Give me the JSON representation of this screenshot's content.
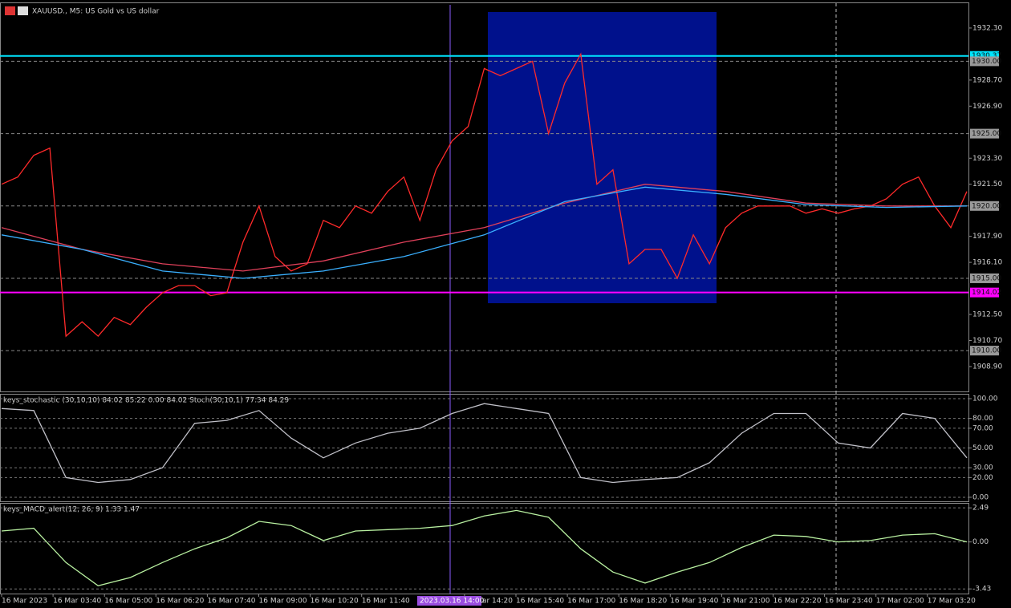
{
  "header": {
    "title": "XAUUSD., M5:  US Gold vs US dollar"
  },
  "chart_data": [
    {
      "type": "line",
      "ylim": [
        1907.18,
        1934.07
      ],
      "yticks": [
        {
          "value": 1932.3,
          "label": "1932.30"
        },
        {
          "value": 1928.7,
          "label": "1928.70"
        },
        {
          "value": 1926.9,
          "label": "1926.90"
        },
        {
          "value": 1923.3,
          "label": "1923.30"
        },
        {
          "value": 1921.5,
          "label": "1921.50"
        },
        {
          "value": 1917.9,
          "label": "1917.90"
        },
        {
          "value": 1916.1,
          "label": "1916.10"
        },
        {
          "value": 1912.5,
          "label": "1912.50"
        },
        {
          "value": 1910.7,
          "label": "1910.70"
        },
        {
          "value": 1908.9,
          "label": "1908.90"
        }
      ],
      "levels": [
        {
          "value": 1930.37,
          "label": "1930.37",
          "color": "#00e5ff"
        },
        {
          "value": 1930,
          "label": "1930.00",
          "color": "#9a9a9a"
        },
        {
          "value": 1925,
          "label": "1925.00",
          "color": "#9a9a9a"
        },
        {
          "value": 1920,
          "label": "1920.00",
          "color": "#9a9a9a"
        },
        {
          "value": 1915,
          "label": "1915.00",
          "color": "#9a9a9a"
        },
        {
          "value": 1914.02,
          "label": "1914.02",
          "color": "#ff00ff"
        },
        {
          "value": 1910,
          "label": "1910.00",
          "color": "#9a9a9a"
        }
      ],
      "series": [
        {
          "color": "#ff2a2a",
          "values": [
            1921.5,
            1922,
            1923.5,
            1924,
            1911,
            1912,
            1911,
            1912.3,
            1911.8,
            1913,
            1914,
            1914.5,
            1914.5,
            1913.8,
            1914,
            1917.5,
            1920,
            1916.5,
            1915.5,
            1916,
            1919,
            1918.5,
            1920,
            1919.5,
            1921,
            1922,
            1919,
            1922.5,
            1924.5,
            1925.5,
            1929.5,
            1929,
            1929.5,
            1930,
            1925,
            1928.5,
            1930.5,
            1921.5,
            1922.5,
            1916,
            1917,
            1917,
            1915,
            1918,
            1916,
            1918.5,
            1919.5,
            1920,
            1920,
            1920,
            1919.5,
            1919.8,
            1919.5,
            1919.8,
            1920,
            1920.5,
            1921.5,
            1922,
            1920,
            1918.5,
            1921
          ]
        },
        {
          "color": "#e0405a",
          "values": [
            1918.5,
            1917,
            1916,
            1915.5,
            1916.2,
            1917.5,
            1918.5,
            1920.2,
            1921.5,
            1921,
            1920.2,
            1920,
            1920
          ]
        },
        {
          "color": "#3ab0ff",
          "values": [
            1918,
            1917,
            1915.5,
            1915,
            1915.5,
            1916.5,
            1918,
            1920.3,
            1921.3,
            1920.8,
            1920.1,
            1919.9,
            1920
          ]
        }
      ]
    },
    {
      "type": "line",
      "title": "keys_stochastic (30,10,10) 84.02 85.22 0.00 84.02 Stoch(30,10,1) 77.34 84.29",
      "ylim": [
        -4.1,
        104.9
      ],
      "grid": true,
      "yticks": [
        {
          "value": 100,
          "label": "100.00"
        },
        {
          "value": 80,
          "label": "80.00"
        },
        {
          "value": 70,
          "label": "70.00"
        },
        {
          "value": 50,
          "label": "50.00"
        },
        {
          "value": 30,
          "label": "30.00"
        },
        {
          "value": 20,
          "label": "20.00"
        },
        {
          "value": 0,
          "label": "0.00"
        }
      ],
      "series": [
        {
          "color": "#c0c0c8",
          "values": [
            90,
            88,
            20,
            15,
            18,
            30,
            75,
            78,
            88,
            60,
            40,
            55,
            65,
            70,
            85,
            95,
            90,
            85,
            20,
            15,
            18,
            20,
            35,
            65,
            85,
            85,
            55,
            50,
            85,
            80,
            40
          ]
        }
      ]
    },
    {
      "type": "line",
      "title": "keys_MACD_alert(12, 26, 9) 1.33 1.47",
      "ylim": [
        -3.77,
        2.85
      ],
      "grid": true,
      "yticks": [
        2.49,
        {
          "value": 0,
          "label": "0.00"
        },
        -3.43
      ],
      "series": [
        {
          "color": "#b8f0a0",
          "values": [
            0.8,
            1.0,
            -1.5,
            -3.2,
            -2.6,
            -1.5,
            -0.5,
            0.3,
            1.5,
            1.2,
            0.1,
            0.8,
            0.9,
            1.0,
            1.2,
            1.9,
            2.3,
            1.8,
            -0.5,
            -2.2,
            -3.0,
            -2.2,
            -1.5,
            -0.4,
            0.5,
            0.4,
            0.0,
            0.1,
            0.5,
            0.6,
            0.0
          ]
        }
      ]
    }
  ],
  "time_axis": {
    "labels": [
      "16 Mar 2023",
      "16 Mar 03:40",
      "16 Mar 05:00",
      "16 Mar 06:20",
      "16 Mar 07:40",
      "16 Mar 09:00",
      "16 Mar 10:20",
      "16 Mar 11:40",
      null,
      "16 Mar 14:20",
      "16 Mar 15:40",
      "16 Mar 17:00",
      "16 Mar 18:20",
      "16 Mar 19:40",
      "16 Mar 21:00",
      "16 Mar 22:20",
      "16 Mar 23:40",
      "17 Mar 02:00",
      "17 Mar 03:20"
    ],
    "cursor_label": "2023.03.16 14:00"
  }
}
